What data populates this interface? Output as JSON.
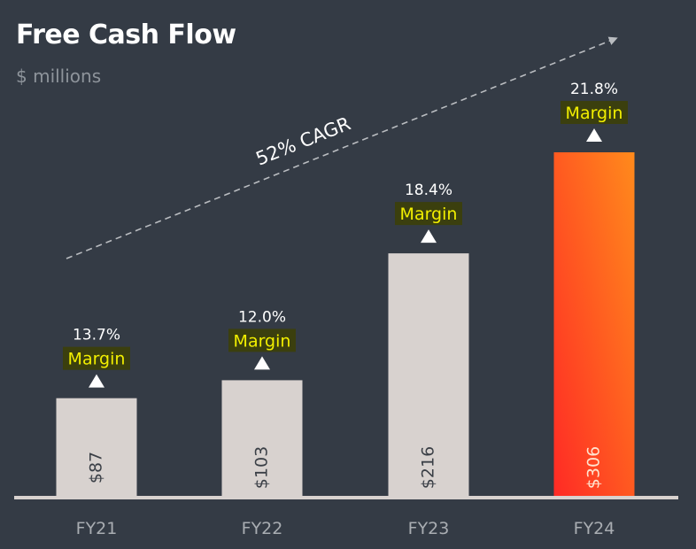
{
  "chart_data": {
    "type": "bar",
    "title": "Free Cash Flow",
    "subtitle": "$ millions",
    "categories": [
      "FY21",
      "FY22",
      "FY23",
      "FY24"
    ],
    "values": [
      87,
      103,
      216,
      306
    ],
    "value_labels": [
      "$87",
      "$103",
      "$216",
      "$306"
    ],
    "margins": [
      "13.7%",
      "12.0%",
      "18.4%",
      "21.8%"
    ],
    "margin_label": "Margin",
    "annotation": "52% CAGR",
    "ylim": [
      0,
      306
    ],
    "colors": {
      "background": "#343b45",
      "bar": "#d8d2cf",
      "highlight_start": "#ff2a25",
      "highlight_end": "#ff8a1c",
      "margin_highlight_bg": "#3b3f0e",
      "margin_text": "#f2ef00",
      "axis": "#d8d2cf",
      "tick": "#a9adb2"
    }
  }
}
